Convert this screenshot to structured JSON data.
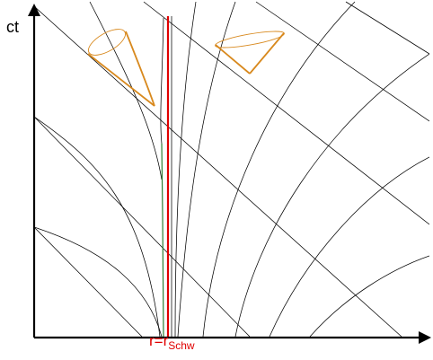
{
  "labels": {
    "time_axis": "ct",
    "horizon_main": "r=r",
    "horizon_sub": "Schw"
  },
  "colors": {
    "background": "#ffffff",
    "axes": "#000000",
    "grid_lines": "#000000",
    "horizon": "#e00000",
    "light_cones": "#d8891e",
    "infalling_worldline": "#2e7d32"
  },
  "elements": [
    "time-axis",
    "space-axis",
    "event-horizon-line",
    "grid-line-family-1",
    "grid-line-family-2",
    "light-cone-inside-horizon",
    "light-cone-outside-horizon",
    "infalling-worldline"
  ]
}
